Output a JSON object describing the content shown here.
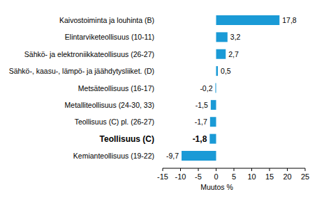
{
  "chart_data": {
    "type": "bar",
    "orientation": "horizontal",
    "categories": [
      "Kaivostoiminta ja louhinta (B)",
      "Elintarviketeollisuus (10-11)",
      "Sähkö- ja elektroniikkateollisuus (26-27)",
      "Sähkö-, kaasu-, lämpö- ja jäähdytysliiket. (D)",
      "Metsäteollisuus (16-17)",
      "Metalliteollisuus (24-30, 33)",
      "Teollisuus (C) pl. (26-27)",
      "Teollisuus (C)",
      "Kemianteollisuus (19-22)"
    ],
    "values": [
      17.8,
      3.2,
      2.7,
      0.5,
      -0.2,
      -1.5,
      -1.7,
      -1.8,
      -9.7
    ],
    "value_labels": [
      "17,8",
      "3,2",
      "2,7",
      "0,5",
      "-0,2",
      "-1,5",
      "-1,7",
      "-1,8",
      "-9,7"
    ],
    "data_labels": true,
    "color": "#1a9ad6",
    "x_label": "Muutos %",
    "xlim": [
      -15,
      25
    ],
    "xticks": [
      -15,
      -10,
      -5,
      0,
      5,
      10,
      15,
      20,
      25
    ],
    "grid": false
  }
}
